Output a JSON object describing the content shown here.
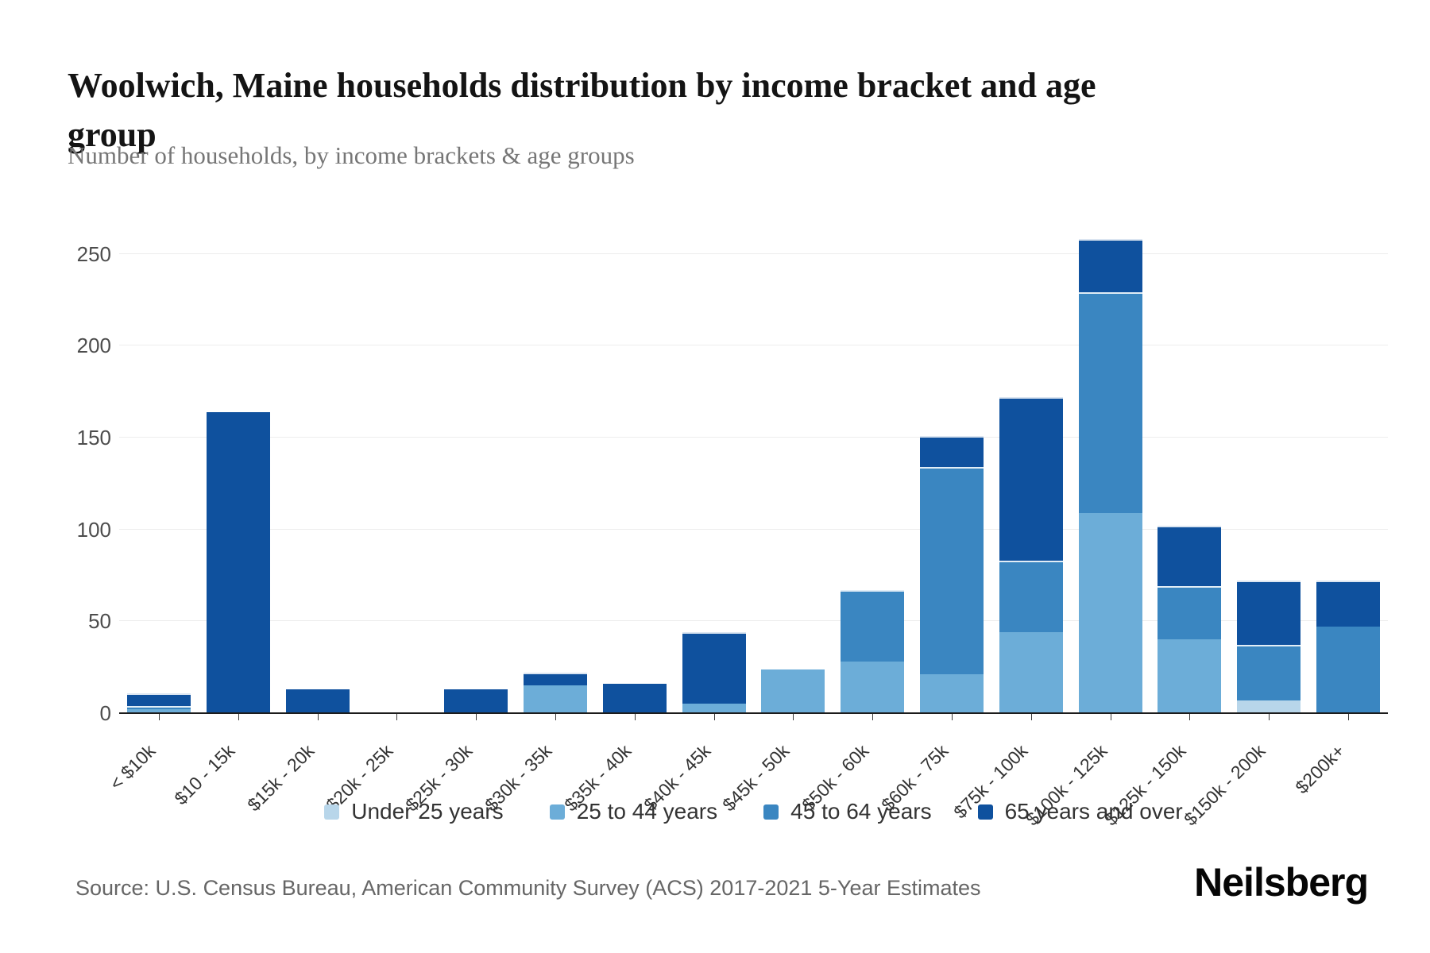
{
  "page": {
    "title": "Woolwich, Maine households distribution by income bracket and age group",
    "subtitle": "Number of households, by income brackets & age groups",
    "source": "Source: U.S. Census Bureau, American Community Survey (ACS) 2017-2021 5-Year Estimates",
    "brand": "Neilsberg"
  },
  "chart_data": {
    "type": "bar",
    "stacked": true,
    "title": "Woolwich, Maine households distribution by income bracket and age group",
    "subtitle": "Number of households, by income brackets & age groups",
    "xlabel": "",
    "ylabel": "Number of households",
    "grid": true,
    "legend_position": "bottom",
    "yticks": [
      0,
      50,
      100,
      150,
      200,
      250
    ],
    "ylim": [
      0,
      278
    ],
    "categories": [
      "< $10k",
      "$10 - 15k",
      "$15k - 20k",
      "$20k - 25k",
      "$25k - 30k",
      "$30k - 35k",
      "$35k - 40k",
      "$40k - 45k",
      "$45k - 50k",
      "$50k - 60k",
      "$60k - 75k",
      "$75k - 100k",
      "$100k - 125k",
      "$125k - 150k",
      "$150k - 200k",
      "$200k+"
    ],
    "series": [
      {
        "name": "Under 25 years",
        "color": "#b8d6ea",
        "values": [
          0,
          0,
          0,
          0,
          0,
          0,
          0,
          0,
          0,
          0,
          0,
          0,
          0,
          0,
          7,
          0
        ]
      },
      {
        "name": "25 to 44 years",
        "color": "#6cadd8",
        "values": [
          2,
          0,
          0,
          0,
          0,
          15,
          0,
          5,
          24,
          28,
          21,
          44,
          109,
          40,
          0,
          0
        ]
      },
      {
        "name": "45 to 64 years",
        "color": "#3a86c1",
        "values": [
          2,
          0,
          0,
          0,
          0,
          0,
          0,
          0,
          0,
          39,
          113,
          39,
          120,
          29,
          30,
          47
        ]
      },
      {
        "name": "65 years and over",
        "color": "#0f519e",
        "values": [
          7,
          164,
          13,
          0,
          13,
          7,
          16,
          39,
          0,
          0,
          17,
          89,
          29,
          33,
          35,
          25
        ]
      }
    ],
    "totals": [
      11,
      164,
      13,
      0,
      13,
      22,
      16,
      44,
      24,
      67,
      151,
      172,
      258,
      102,
      72,
      72
    ]
  }
}
